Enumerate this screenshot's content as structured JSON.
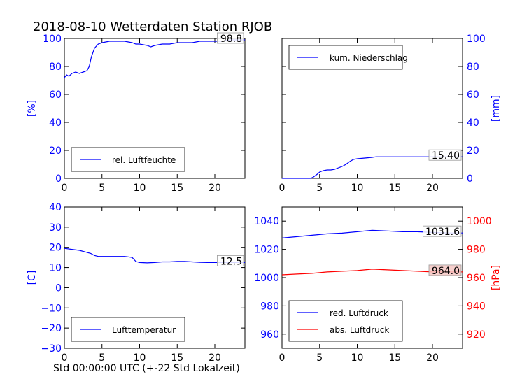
{
  "title": "2018-08-10 Wetterdaten Station RJOB",
  "xlabel": "Std 00:00:00 UTC (+-22 Std Lokalzeit)",
  "colors": {
    "blue": "#0000ff",
    "red": "#ff0000",
    "label_bg_red": "#f4c7c3"
  },
  "chart_data": [
    {
      "type": "line",
      "ylabel": "[%]",
      "xlim": [
        0,
        24
      ],
      "ylim": [
        0,
        100
      ],
      "xticks": [
        "0",
        "5",
        "10",
        "15",
        "20"
      ],
      "yticks": [
        "0",
        "20",
        "40",
        "60",
        "80",
        "100"
      ],
      "legend_position": "lower-left",
      "last_value": "98.8",
      "series": [
        {
          "name": "rel. Luftfeuchte",
          "color": "#0000ff",
          "x": [
            0,
            0.3,
            0.6,
            1,
            1.5,
            2,
            2.5,
            3,
            3.3,
            3.6,
            4,
            4.5,
            5,
            6,
            7,
            8,
            9,
            9.5,
            10,
            11,
            11.5,
            12,
            13,
            14,
            15,
            16,
            17,
            18,
            19,
            20,
            21,
            22,
            23,
            24
          ],
          "y": [
            72,
            74,
            73,
            75,
            76,
            75,
            76,
            77,
            80,
            87,
            93,
            96,
            97,
            98,
            98,
            98,
            97,
            96,
            96,
            95,
            94,
            95,
            96,
            96,
            97,
            97,
            97,
            98,
            98,
            98,
            98,
            99,
            99,
            99
          ]
        }
      ]
    },
    {
      "type": "line",
      "ylabel": "[mm]",
      "xlim": [
        0,
        24
      ],
      "ylim": [
        0,
        100
      ],
      "xticks": [
        "0",
        "5",
        "10",
        "15",
        "20"
      ],
      "yticks": [
        "0",
        "20",
        "40",
        "60",
        "80",
        "100"
      ],
      "legend_position": "upper-left",
      "last_value": "15.40",
      "series": [
        {
          "name": "kum. Niederschlag",
          "color": "#0000ff",
          "x": [
            0,
            3.8,
            4.2,
            4.7,
            5,
            5.5,
            6,
            6.5,
            7,
            7.5,
            8,
            8.5,
            9,
            9.5,
            10,
            11,
            12,
            12.5,
            13,
            15,
            20,
            24
          ],
          "y": [
            0,
            0,
            1,
            3,
            4.5,
            5.5,
            6,
            6,
            6.5,
            7.5,
            8.5,
            10,
            12,
            13.5,
            14,
            14.5,
            15,
            15.4,
            15.4,
            15.4,
            15.4,
            15.4
          ]
        }
      ]
    },
    {
      "type": "line",
      "ylabel": "[C]",
      "xlim": [
        0,
        24
      ],
      "ylim": [
        -30,
        40
      ],
      "xticks": [
        "0",
        "5",
        "10",
        "15",
        "20"
      ],
      "yticks": [
        "40",
        "30",
        "20",
        "10",
        "0",
        "−10",
        "−20",
        "−30"
      ],
      "legend_position": "lower-left",
      "last_value": "12.5",
      "series": [
        {
          "name": "Lufttemperatur",
          "color": "#0000ff",
          "x": [
            0,
            1,
            2,
            3,
            3.5,
            4,
            4.5,
            5,
            6,
            7,
            8,
            8.5,
            9,
            9.5,
            10,
            11,
            12,
            13,
            14,
            15,
            16,
            17,
            18,
            19,
            20,
            21,
            22,
            23,
            24
          ],
          "y": [
            19.5,
            19,
            18.5,
            17.5,
            17,
            16,
            15.5,
            15.5,
            15.5,
            15.5,
            15.5,
            15.3,
            15,
            13,
            12.5,
            12.3,
            12.5,
            12.8,
            12.8,
            13,
            13,
            12.8,
            12.6,
            12.5,
            12.5,
            12.5,
            12.5,
            12.5,
            12.5
          ]
        }
      ]
    },
    {
      "type": "line",
      "ylabel": "[hPa]",
      "xlim": [
        0,
        24
      ],
      "ylim_left": [
        950,
        1050
      ],
      "ylim_right": [
        910,
        1010
      ],
      "xticks": [
        "0",
        "5",
        "10",
        "15",
        "20"
      ],
      "yticks_left": [
        "1040",
        "1020",
        "1000",
        "980",
        "960"
      ],
      "yticks_right": [
        "1000",
        "980",
        "960",
        "940",
        "920"
      ],
      "legend_position": "lower-left",
      "last_values": [
        "1031.6",
        "964.0"
      ],
      "series": [
        {
          "name": "red. Luftdruck",
          "color": "#0000ff",
          "axis": "left",
          "x": [
            0,
            2,
            4,
            6,
            8,
            10,
            12,
            14,
            16,
            18,
            20,
            22,
            24
          ],
          "y": [
            1028,
            1029,
            1030,
            1031,
            1031.5,
            1032.5,
            1033.5,
            1033,
            1032.5,
            1032.5,
            1032,
            1031.6,
            1031.6
          ]
        },
        {
          "name": "abs. Luftdruck",
          "color": "#ff0000",
          "axis": "right",
          "x": [
            0,
            2,
            4,
            6,
            8,
            10,
            12,
            14,
            16,
            18,
            20,
            22,
            24
          ],
          "y": [
            962,
            962.5,
            963,
            964,
            964.5,
            965,
            966,
            965.5,
            965,
            964.5,
            964,
            964,
            964
          ]
        }
      ]
    }
  ]
}
